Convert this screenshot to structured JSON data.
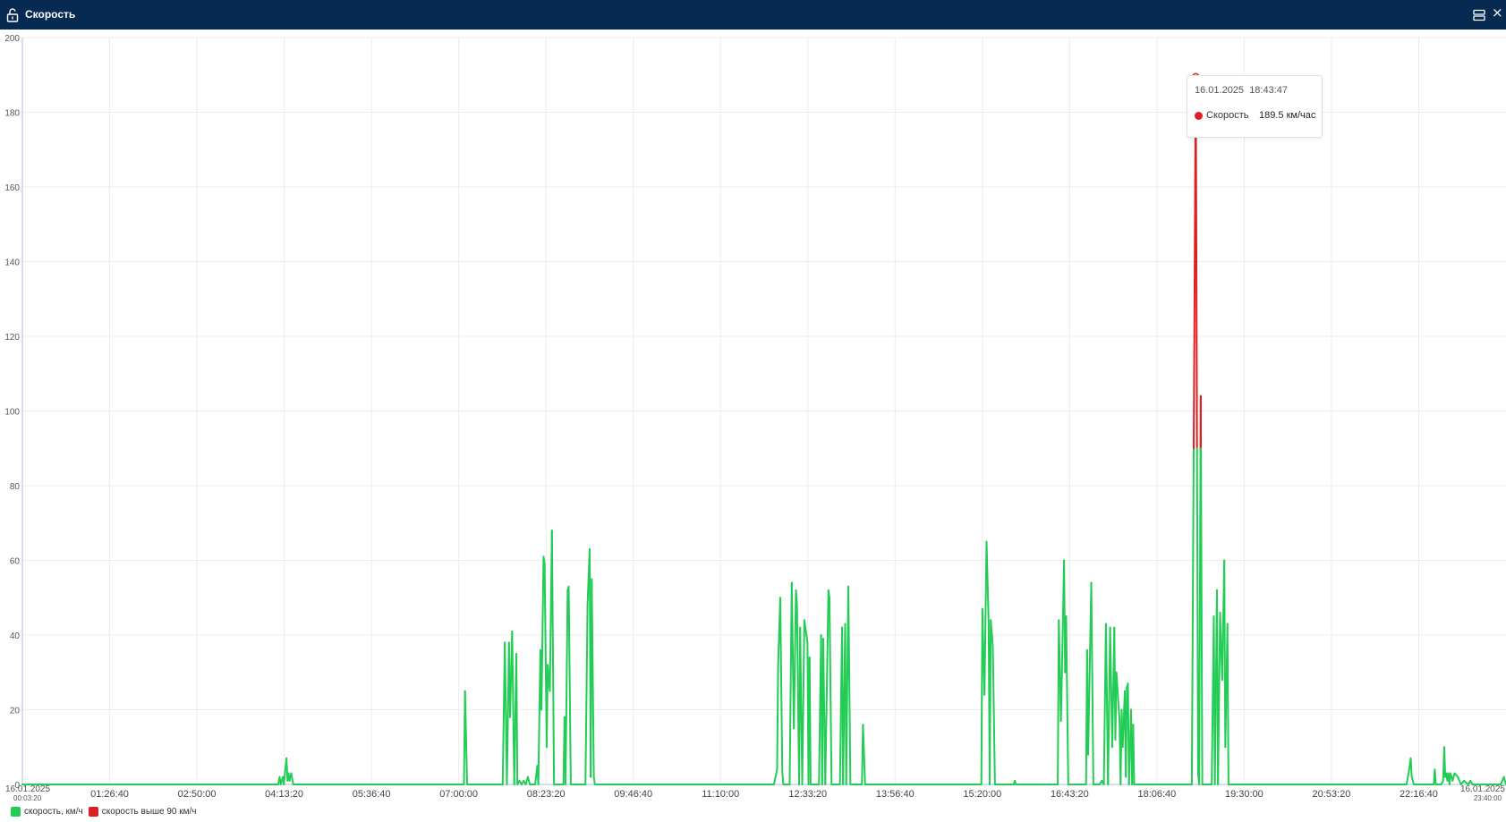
{
  "window": {
    "title": "Скорость",
    "close_label": "×"
  },
  "colors": {
    "normal": "#22cc55",
    "over": "#dd1f22",
    "titlebar": "#062a52"
  },
  "legend": [
    {
      "label": "скорость, км/ч",
      "color": "#22cc55"
    },
    {
      "label": "скорость выше 90 км/ч",
      "color": "#dd1f22"
    }
  ],
  "tooltip": {
    "date": "16.01.2025",
    "time": "18:43:47",
    "series": "Скорость",
    "value": "189.5 км/час",
    "color": "#dd1f22"
  },
  "chart_data": {
    "type": "line",
    "title": "",
    "xlabel": "",
    "ylabel": "",
    "ylim": [
      0,
      200
    ],
    "yticks": [
      0,
      20,
      40,
      60,
      80,
      100,
      120,
      140,
      160,
      180,
      200
    ],
    "xlim": [
      "00:03:20",
      "23:40:00"
    ],
    "xticks": [
      "01:26:40",
      "02:50:00",
      "04:13:20",
      "05:36:40",
      "07:00:00",
      "08:23:20",
      "09:46:40",
      "11:10:00",
      "12:33:20",
      "13:56:40",
      "15:20:00",
      "16:43:20",
      "18:06:40",
      "19:30:00",
      "20:53:20",
      "22:16:40"
    ],
    "x_start_label": {
      "date": "16.01.2025",
      "time": "00:03:20"
    },
    "x_end_label": {
      "date": "16.01.2025",
      "time": "23:40:00"
    },
    "threshold": 90,
    "grid": true,
    "series": [
      {
        "name": "скорость, км/ч",
        "points": [
          [
            "00:03:20",
            0
          ],
          [
            "04:07:30",
            0
          ],
          [
            "04:09:00",
            2
          ],
          [
            "04:10:00",
            0
          ],
          [
            "04:12:00",
            2
          ],
          [
            "04:13:00",
            0
          ],
          [
            "04:15:30",
            7
          ],
          [
            "04:16:30",
            1
          ],
          [
            "04:17:30",
            3
          ],
          [
            "04:18:30",
            1
          ],
          [
            "04:20:00",
            3
          ],
          [
            "04:22:00",
            0
          ],
          [
            "07:05:00",
            0
          ],
          [
            "07:06:00",
            25
          ],
          [
            "07:08:00",
            0
          ],
          [
            "07:42:00",
            0
          ],
          [
            "07:44:00",
            38
          ],
          [
            "07:46:00",
            0
          ],
          [
            "07:48:00",
            38
          ],
          [
            "07:49:00",
            18
          ],
          [
            "07:51:00",
            41
          ],
          [
            "07:53:00",
            0
          ],
          [
            "07:55:00",
            35
          ],
          [
            "07:56:00",
            0
          ],
          [
            "07:58:00",
            1
          ],
          [
            "08:00:00",
            0
          ],
          [
            "08:02:00",
            1
          ],
          [
            "08:04:00",
            0
          ],
          [
            "08:06:00",
            2
          ],
          [
            "08:08:00",
            0
          ],
          [
            "08:13:00",
            0
          ],
          [
            "08:15:00",
            5
          ],
          [
            "08:16:00",
            0
          ],
          [
            "08:18:00",
            36
          ],
          [
            "08:19:00",
            20
          ],
          [
            "08:21:00",
            61
          ],
          [
            "08:22:00",
            59
          ],
          [
            "08:24:00",
            10
          ],
          [
            "08:25:00",
            32
          ],
          [
            "08:27:00",
            25
          ],
          [
            "08:29:00",
            68
          ],
          [
            "08:31:00",
            0
          ],
          [
            "08:33:00",
            0
          ],
          [
            "08:35:00",
            0
          ],
          [
            "08:40:00",
            0
          ],
          [
            "08:41:00",
            18
          ],
          [
            "08:42:00",
            0
          ],
          [
            "08:44:00",
            52
          ],
          [
            "08:45:00",
            53
          ],
          [
            "08:47:00",
            0
          ],
          [
            "09:01:00",
            0
          ],
          [
            "09:03:00",
            48
          ],
          [
            "09:05:00",
            63
          ],
          [
            "09:06:00",
            2
          ],
          [
            "09:07:00",
            55
          ],
          [
            "09:09:00",
            2
          ],
          [
            "09:10:00",
            0
          ],
          [
            "12:01:00",
            0
          ],
          [
            "12:04:00",
            4
          ],
          [
            "12:05:00",
            32
          ],
          [
            "12:07:00",
            50
          ],
          [
            "12:09:00",
            3
          ],
          [
            "12:10:00",
            0
          ],
          [
            "12:16:00",
            0
          ],
          [
            "12:18:00",
            54
          ],
          [
            "12:20:00",
            15
          ],
          [
            "12:22:00",
            52
          ],
          [
            "12:23:00",
            48
          ],
          [
            "12:25:00",
            0
          ],
          [
            "12:26:00",
            42
          ],
          [
            "12:28:00",
            0
          ],
          [
            "12:30:00",
            44
          ],
          [
            "12:33:00",
            38
          ],
          [
            "12:34:00",
            0
          ],
          [
            "12:35:00",
            34
          ],
          [
            "12:36:00",
            0
          ],
          [
            "12:44:00",
            0
          ],
          [
            "12:46:00",
            40
          ],
          [
            "12:47:00",
            0
          ],
          [
            "12:48:00",
            39
          ],
          [
            "12:50:00",
            0
          ],
          [
            "12:53:00",
            52
          ],
          [
            "12:54:00",
            50
          ],
          [
            "12:56:00",
            0
          ],
          [
            "13:04:00",
            0
          ],
          [
            "13:06:00",
            42
          ],
          [
            "13:07:00",
            0
          ],
          [
            "13:09:00",
            43
          ],
          [
            "13:10:00",
            0
          ],
          [
            "13:12:00",
            53
          ],
          [
            "13:14:00",
            0
          ],
          [
            "13:25:00",
            0
          ],
          [
            "13:26:00",
            16
          ],
          [
            "13:28:00",
            0
          ],
          [
            "15:19:00",
            0
          ],
          [
            "15:20:00",
            47
          ],
          [
            "15:22:00",
            24
          ],
          [
            "15:24:00",
            65
          ],
          [
            "15:26:00",
            43
          ],
          [
            "15:27:00",
            0
          ],
          [
            "15:28:00",
            44
          ],
          [
            "15:30:00",
            37
          ],
          [
            "15:32:00",
            0
          ],
          [
            "15:50:00",
            0
          ],
          [
            "15:51:00",
            1
          ],
          [
            "15:52:00",
            0
          ],
          [
            "16:32:00",
            0
          ],
          [
            "16:33:00",
            44
          ],
          [
            "16:35:00",
            17
          ],
          [
            "16:36:00",
            30
          ],
          [
            "16:38:00",
            60
          ],
          [
            "16:39:00",
            30
          ],
          [
            "16:40:00",
            45
          ],
          [
            "16:42:00",
            0
          ],
          [
            "16:59:00",
            0
          ],
          [
            "17:00:00",
            36
          ],
          [
            "17:01:00",
            8
          ],
          [
            "17:04:00",
            54
          ],
          [
            "17:06:00",
            0
          ],
          [
            "17:12:00",
            0
          ],
          [
            "17:14:00",
            1
          ],
          [
            "17:16:00",
            0
          ],
          [
            "17:18:00",
            43
          ],
          [
            "17:20:00",
            0
          ],
          [
            "17:22:00",
            42
          ],
          [
            "17:24:00",
            10
          ],
          [
            "17:26:00",
            42
          ],
          [
            "17:27:00",
            12
          ],
          [
            "17:28:00",
            30
          ],
          [
            "17:31:00",
            17
          ],
          [
            "17:32:00",
            0
          ],
          [
            "17:33:00",
            20
          ],
          [
            "17:34:00",
            10
          ],
          [
            "17:36:00",
            25
          ],
          [
            "17:37:00",
            2
          ],
          [
            "17:38:00",
            26
          ],
          [
            "17:39:00",
            27
          ],
          [
            "17:40:00",
            0
          ],
          [
            "17:42:00",
            20
          ],
          [
            "17:43:00",
            0
          ],
          [
            "17:44:00",
            16
          ],
          [
            "17:45:00",
            0
          ],
          [
            "18:40:00",
            0
          ],
          [
            "18:43:47",
            189.5
          ],
          [
            "18:46:00",
            3
          ],
          [
            "18:47:00",
            0
          ],
          [
            "18:48:30",
            104
          ],
          [
            "18:50:00",
            0
          ],
          [
            "18:59:00",
            0
          ],
          [
            "19:01:00",
            45
          ],
          [
            "19:02:00",
            0
          ],
          [
            "19:04:00",
            52
          ],
          [
            "19:05:00",
            0
          ],
          [
            "19:07:00",
            46
          ],
          [
            "19:09:00",
            28
          ],
          [
            "19:11:00",
            60
          ],
          [
            "19:12:00",
            10
          ],
          [
            "19:14:00",
            43
          ],
          [
            "19:15:00",
            0
          ],
          [
            "22:05:00",
            0
          ],
          [
            "22:07:00",
            3
          ],
          [
            "22:09:00",
            7
          ],
          [
            "22:10:00",
            2
          ],
          [
            "22:12:00",
            0
          ],
          [
            "22:31:00",
            0
          ],
          [
            "22:32:00",
            4
          ],
          [
            "22:33:00",
            0
          ],
          [
            "22:38:00",
            0
          ],
          [
            "22:40:00",
            1
          ],
          [
            "22:41:00",
            10
          ],
          [
            "22:42:00",
            2
          ],
          [
            "22:43:00",
            3
          ],
          [
            "22:44:00",
            1
          ],
          [
            "22:45:00",
            3
          ],
          [
            "22:46:00",
            0
          ],
          [
            "22:47:00",
            3
          ],
          [
            "22:48:00",
            2
          ],
          [
            "22:49:00",
            1
          ],
          [
            "22:51:00",
            3
          ],
          [
            "22:54:00",
            2
          ],
          [
            "22:57:00",
            0
          ],
          [
            "23:00:00",
            1
          ],
          [
            "23:04:00",
            0
          ],
          [
            "23:06:00",
            1
          ],
          [
            "23:08:00",
            0
          ],
          [
            "23:35:00",
            0
          ],
          [
            "23:38:00",
            2
          ],
          [
            "23:40:00",
            0
          ]
        ]
      }
    ]
  }
}
